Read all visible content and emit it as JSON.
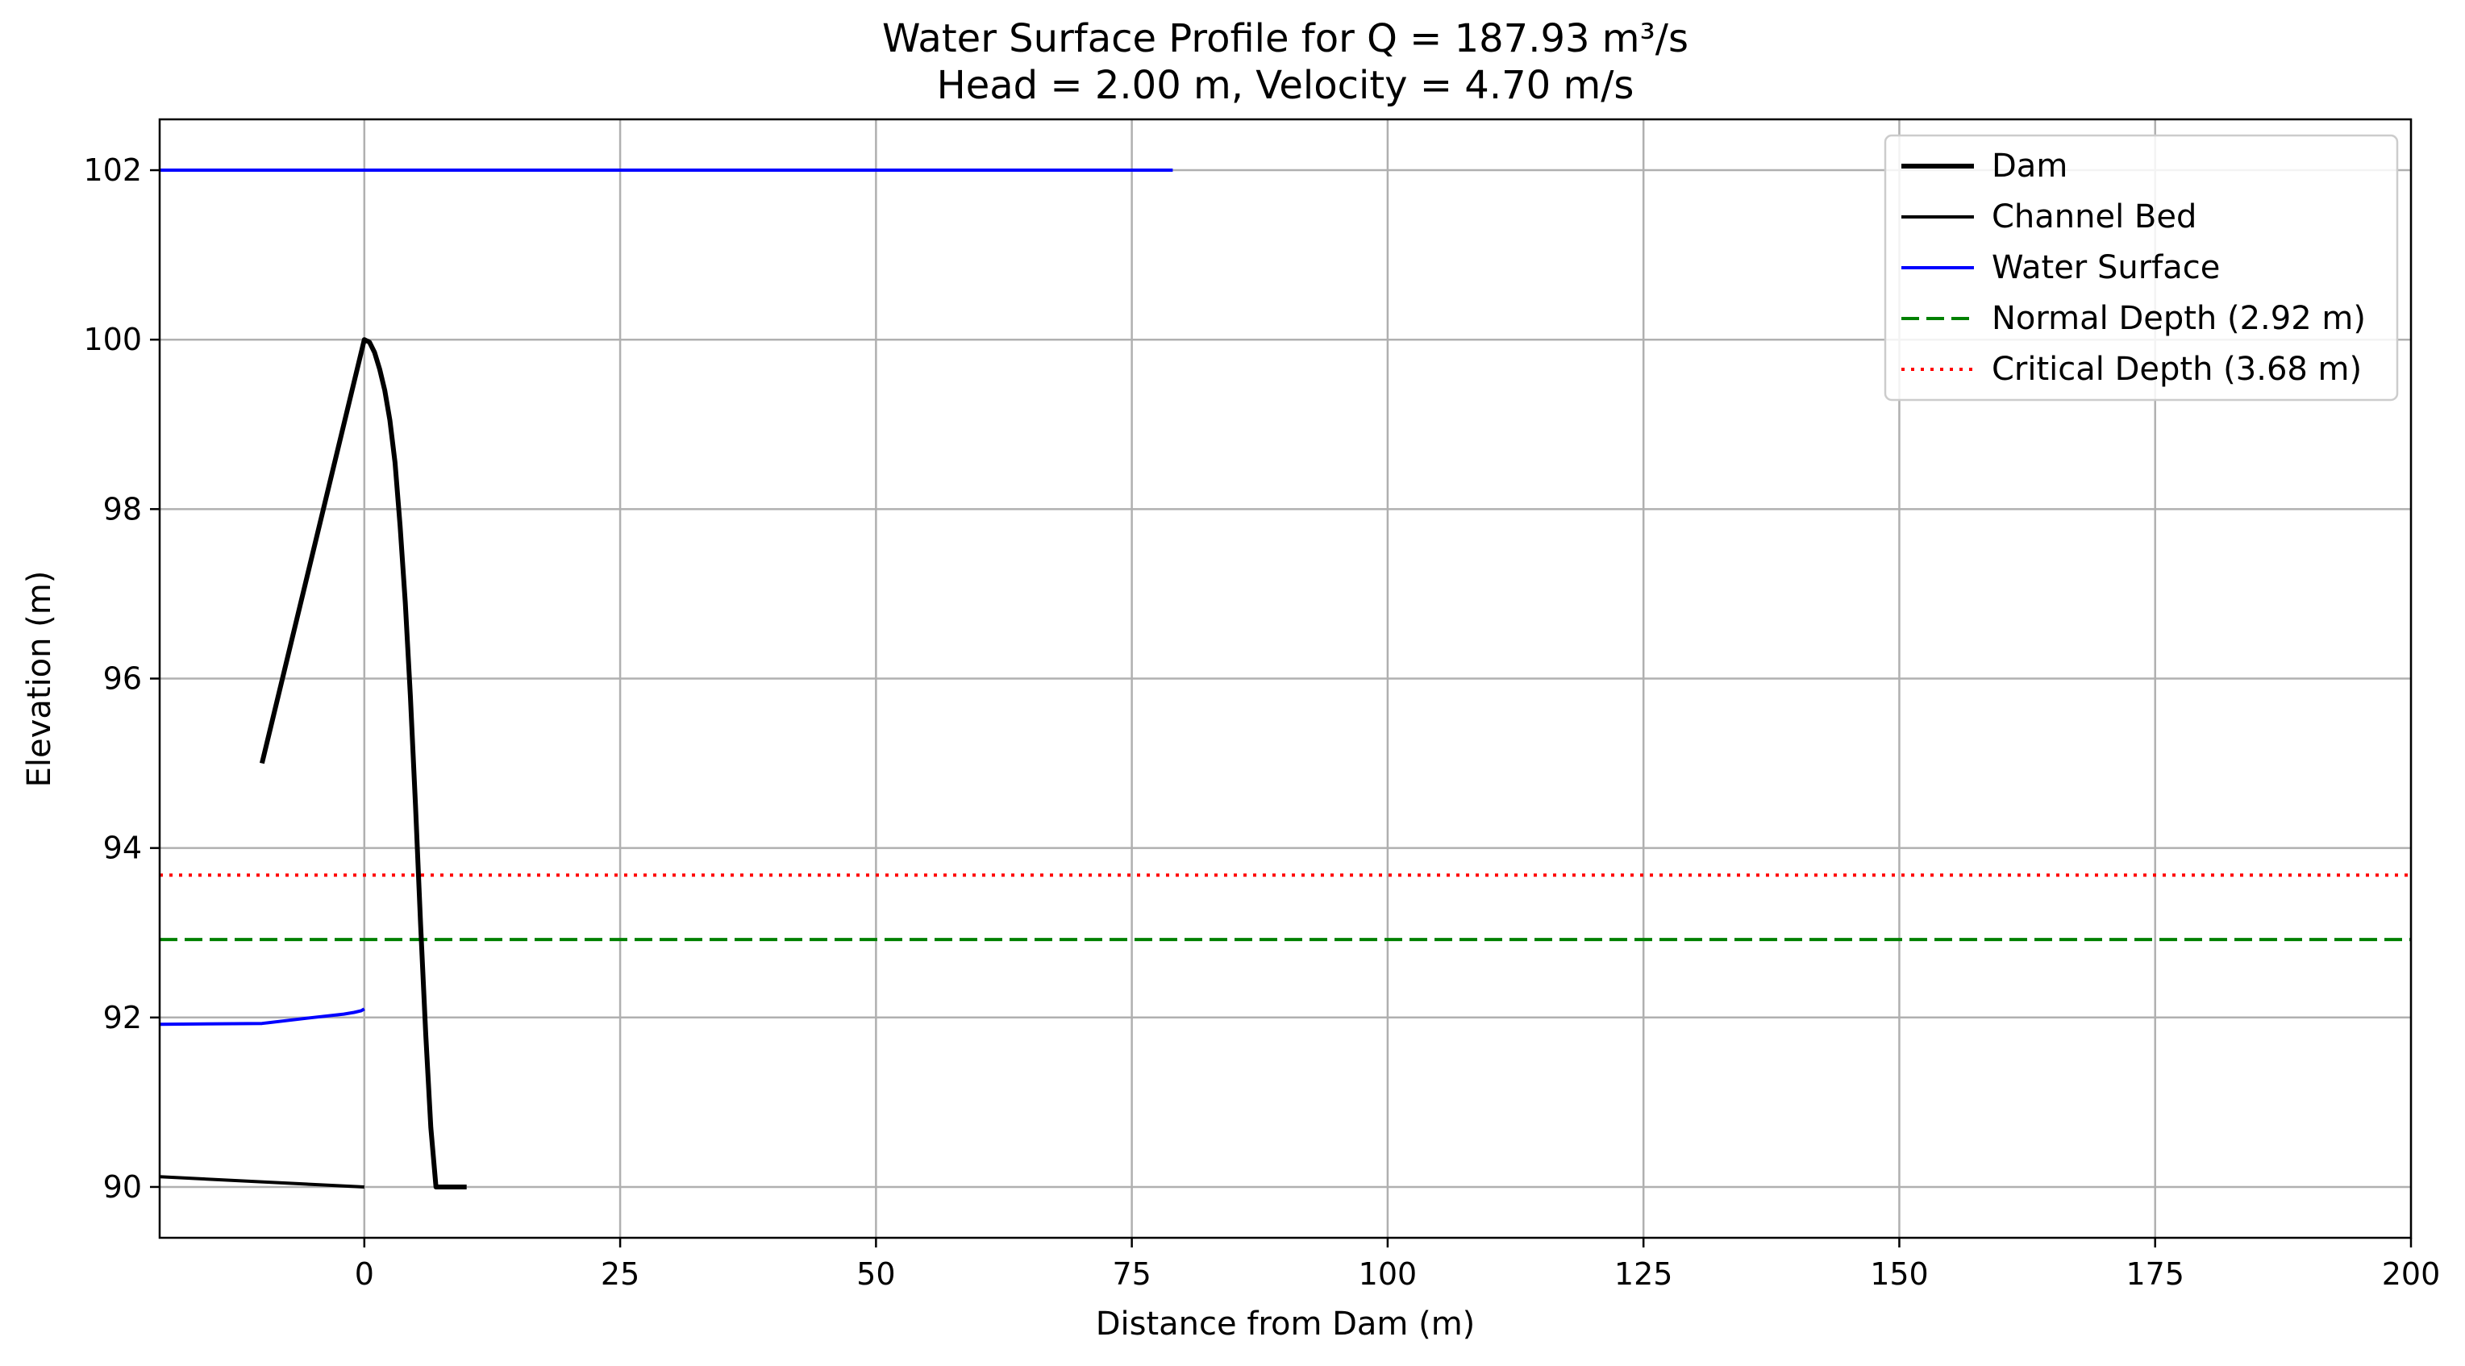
{
  "chart_data": {
    "type": "line",
    "title": "Water Surface Profile for Q = 187.93 m³/s",
    "subtitle": "Head = 2.00 m, Velocity = 4.70 m/s",
    "xlabel": "Distance from Dam (m)",
    "ylabel": "Elevation (m)",
    "xlim": [
      -20,
      200
    ],
    "ylim": [
      89.4,
      102.6
    ],
    "x_ticks": [
      0,
      25,
      50,
      75,
      100,
      125,
      150,
      175,
      200
    ],
    "y_ticks": [
      90,
      92,
      94,
      96,
      98,
      100,
      102
    ],
    "grid": true,
    "legend_position": "top-right",
    "series": [
      {
        "name": "Dam",
        "color": "#000000",
        "style": "solid-thick",
        "points": [
          [
            -10,
            95.0
          ],
          [
            0,
            100.0
          ],
          [
            0.5,
            99.97
          ],
          [
            1,
            99.85
          ],
          [
            1.5,
            99.65
          ],
          [
            2,
            99.4
          ],
          [
            2.5,
            99.05
          ],
          [
            3,
            98.55
          ],
          [
            3.5,
            97.8
          ],
          [
            4,
            96.9
          ],
          [
            4.5,
            95.8
          ],
          [
            5,
            94.5
          ],
          [
            5.5,
            93.1
          ],
          [
            6,
            91.8
          ],
          [
            6.5,
            90.7
          ],
          [
            7,
            90.0
          ],
          [
            10,
            90.0
          ]
        ]
      },
      {
        "name": "Channel Bed",
        "color": "#000000",
        "style": "solid",
        "points": [
          [
            -20,
            90.12
          ],
          [
            0,
            90.0
          ]
        ]
      },
      {
        "name": "Water Surface",
        "color": "#0000ff",
        "style": "solid",
        "segments": [
          [
            [
              -20,
              91.92
            ],
            [
              -10,
              91.93
            ],
            [
              -5,
              92.0
            ],
            [
              -2,
              92.04
            ],
            [
              -1,
              92.06
            ],
            [
              -0.3,
              92.08
            ],
            [
              0,
              92.1
            ]
          ],
          [
            [
              -20,
              102.0
            ],
            [
              79,
              102.0
            ]
          ]
        ]
      },
      {
        "name": "Normal Depth (2.92 m)",
        "color": "#008000",
        "style": "dashed",
        "y": 92.92
      },
      {
        "name": "Critical Depth (3.68 m)",
        "color": "#ff0000",
        "style": "dotted",
        "y": 93.68
      }
    ]
  }
}
